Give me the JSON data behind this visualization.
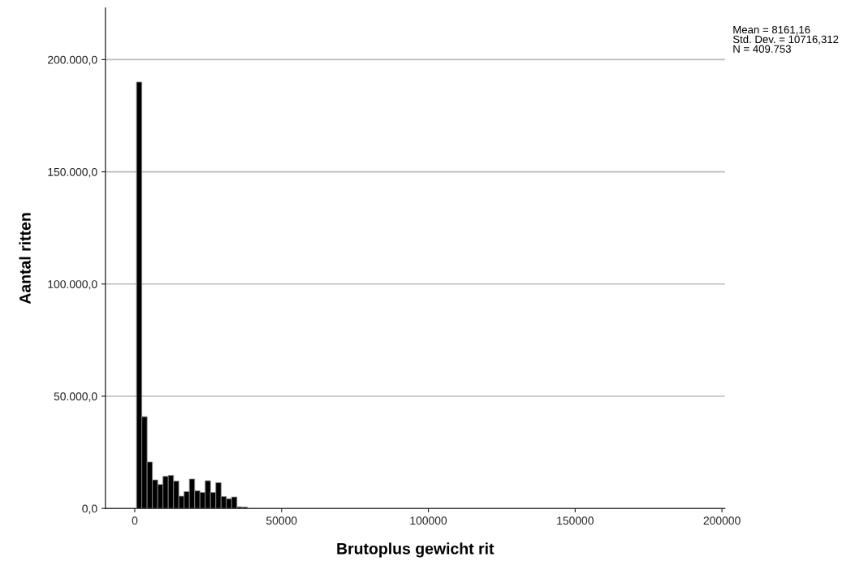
{
  "chart_data": {
    "type": "histogram",
    "xlabel": "Brutoplus gewicht rit",
    "ylabel": "Aantal ritten",
    "bins": [
      600,
      2400,
      4200,
      6000,
      7800,
      9600,
      11400,
      13200,
      15000,
      16800,
      18600,
      20400,
      22200,
      24000,
      25800,
      27600,
      29400,
      31200,
      33000,
      34800,
      36600,
      38400
    ],
    "values": [
      190000,
      40900,
      20700,
      12700,
      10650,
      14300,
      14750,
      12200,
      5450,
      7500,
      13100,
      7850,
      7100,
      12350,
      7100,
      11500,
      5300,
      4350,
      5100,
      700,
      600
    ],
    "color": "#000000",
    "xlim": [
      -10000,
      201000
    ],
    "xticks": [
      0,
      50000,
      100000,
      150000,
      200000
    ],
    "ylim": [
      0,
      223000
    ],
    "yticks": [
      {
        "value": 0,
        "label": "0,0"
      },
      {
        "value": 50000,
        "label": "50.000,0"
      },
      {
        "value": 100000,
        "label": "100.000,0"
      },
      {
        "value": 150000,
        "label": "150.000,0"
      },
      {
        "value": 200000,
        "label": "200.000,0"
      }
    ],
    "grid": "y",
    "legend": false,
    "annotations": [
      "Mean = 8161,16\nStd. Dev. = 10716,312\nN = 409.753"
    ]
  }
}
